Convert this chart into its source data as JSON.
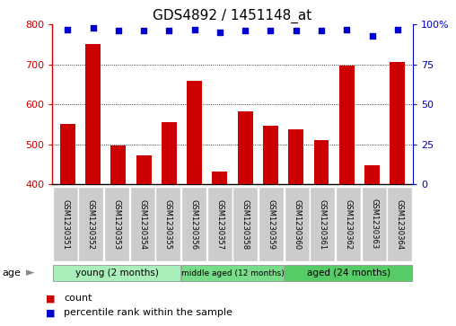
{
  "title": "GDS4892 / 1451148_at",
  "samples": [
    "GSM1230351",
    "GSM1230352",
    "GSM1230353",
    "GSM1230354",
    "GSM1230355",
    "GSM1230356",
    "GSM1230357",
    "GSM1230358",
    "GSM1230359",
    "GSM1230360",
    "GSM1230361",
    "GSM1230362",
    "GSM1230363",
    "GSM1230364"
  ],
  "counts": [
    551,
    750,
    497,
    472,
    555,
    658,
    432,
    582,
    547,
    537,
    511,
    698,
    447,
    706
  ],
  "percentile_ranks": [
    97,
    98,
    96,
    96,
    96,
    97,
    95,
    96,
    96,
    96,
    96,
    97,
    93,
    97
  ],
  "ylim_left": [
    400,
    800
  ],
  "ylim_right": [
    0,
    100
  ],
  "yticks_left": [
    400,
    500,
    600,
    700,
    800
  ],
  "yticks_right": [
    0,
    25,
    50,
    75,
    100
  ],
  "bar_color": "#cc0000",
  "dot_color": "#0000cc",
  "grid_color": "#000000",
  "bg_color": "#ffffff",
  "tick_label_area_color": "#cccccc",
  "groups": [
    {
      "label": "young (2 months)",
      "start": 0,
      "end": 4,
      "color": "#aaeebb"
    },
    {
      "label": "middle aged (12 months)",
      "start": 5,
      "end": 8,
      "color": "#77dd88"
    },
    {
      "label": "aged (24 months)",
      "start": 9,
      "end": 13,
      "color": "#55cc66"
    }
  ],
  "age_label": "age",
  "legend_count_label": "count",
  "legend_percentile_label": "percentile rank within the sample",
  "title_fontsize": 11,
  "axis_fontsize": 8,
  "label_fontsize": 8
}
